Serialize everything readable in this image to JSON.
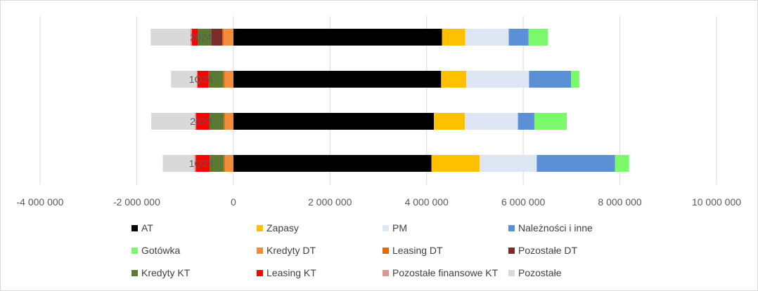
{
  "chart_data": {
    "type": "bar",
    "orientation": "horizontal",
    "stacked": true,
    "title": "",
    "xlabel": "",
    "ylabel": "",
    "xlim": [
      -4000000,
      10000000
    ],
    "x_ticks": [
      -4000000,
      -2000000,
      0,
      2000000,
      4000000,
      6000000,
      8000000,
      10000000
    ],
    "x_tick_labels": [
      "-4 000 000",
      "-2 000 000",
      "0",
      "2 000 000",
      "4 000 000",
      "6 000 000",
      "8 000 000",
      "10 000 000"
    ],
    "grid": true,
    "legend_position": "bottom",
    "categories": [
      "1Q23",
      "2023",
      "1Q24",
      "2024"
    ],
    "series": [
      {
        "name": "AT",
        "color": "#000000",
        "values": [
          4100000,
          4150000,
          4300000,
          4320000
        ]
      },
      {
        "name": "Zapasy",
        "color": "#FFC000",
        "values": [
          1000000,
          640000,
          520000,
          480000
        ]
      },
      {
        "name": "PM",
        "color": "#DDE6F2",
        "values": [
          1180000,
          1100000,
          1300000,
          900000
        ]
      },
      {
        "name": "Należności i inne",
        "color": "#5B8FD6",
        "values": [
          1620000,
          340000,
          870000,
          410000
        ]
      },
      {
        "name": "Gotówka",
        "color": "#7CF96B",
        "values": [
          290000,
          670000,
          170000,
          400000
        ]
      },
      {
        "name": "Kredyty DT",
        "color": "#F08C3A",
        "values": [
          -170000,
          -170000,
          -180000,
          -200000
        ]
      },
      {
        "name": "Leasing DT",
        "color": "#E46C0A",
        "values": [
          -30000,
          -30000,
          -30000,
          -30000
        ]
      },
      {
        "name": "Pozostałe DT",
        "color": "#7B2C2C",
        "values": [
          0,
          0,
          0,
          -230000
        ]
      },
      {
        "name": "Kredyty KT",
        "color": "#5A7A34",
        "values": [
          -290000,
          -300000,
          -300000,
          -280000
        ]
      },
      {
        "name": "Leasing KT",
        "color": "#FF0000",
        "values": [
          -290000,
          -270000,
          -230000,
          -120000
        ]
      },
      {
        "name": "Pozostałe finansowe KT",
        "color": "#D99694",
        "values": [
          -30000,
          -30000,
          -20000,
          -30000
        ]
      },
      {
        "name": "Pozostałe",
        "color": "#D9D9D9",
        "values": [
          -650000,
          -900000,
          -530000,
          -820000
        ]
      }
    ]
  }
}
